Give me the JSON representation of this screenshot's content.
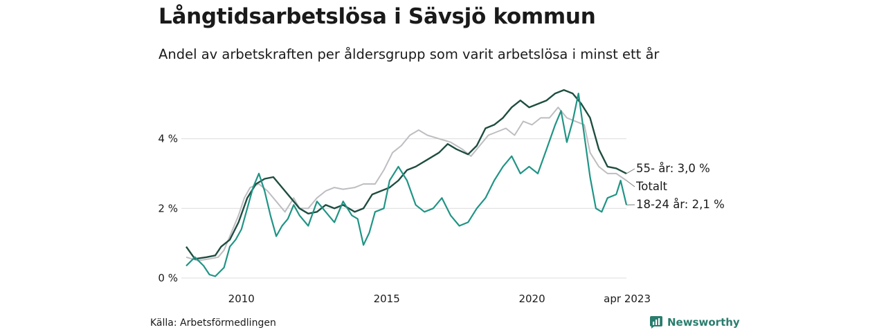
{
  "title": "Långtidsarbetslösa i Sävsjö kommun",
  "subtitle": "Andel av arbetskraften per åldersgrupp som varit arbetslösa i minst ett år",
  "source": "Källa: Arbetsförmedlingen",
  "brand": {
    "name": "Newsworthy",
    "icon": "newsworthy-logo-icon"
  },
  "colors": {
    "age55": "#1e4d40",
    "total": "#bdbdc2",
    "age1824": "#1f9485",
    "grid": "#dcdcdc"
  },
  "chart_data": {
    "type": "line",
    "title": "Långtidsarbetslösa i Sävsjö kommun",
    "ylim": [
      0,
      5.6
    ],
    "xlim": [
      2008.1,
      2023.25
    ],
    "yticks": [
      {
        "value": 0,
        "label": "0 %"
      },
      {
        "value": 2,
        "label": "2 %"
      },
      {
        "value": 4,
        "label": "4 %"
      }
    ],
    "xticks": [
      {
        "value": 2010,
        "label": "2010"
      },
      {
        "value": 2015,
        "label": "2015"
      },
      {
        "value": 2020,
        "label": "2020"
      },
      {
        "value": 2023.25,
        "label": "apr 2023"
      }
    ],
    "grid": true,
    "series": [
      {
        "key": "total",
        "name": "Totalt",
        "label": "Totalt",
        "points": [
          [
            2008.1,
            0.6
          ],
          [
            2008.5,
            0.5
          ],
          [
            2008.9,
            0.55
          ],
          [
            2009.2,
            0.6
          ],
          [
            2009.4,
            0.8
          ],
          [
            2009.6,
            1.2
          ],
          [
            2009.9,
            1.8
          ],
          [
            2010.1,
            2.3
          ],
          [
            2010.3,
            2.6
          ],
          [
            2010.6,
            2.7
          ],
          [
            2010.9,
            2.5
          ],
          [
            2011.2,
            2.2
          ],
          [
            2011.5,
            1.9
          ],
          [
            2011.8,
            2.3
          ],
          [
            2012.0,
            2.0
          ],
          [
            2012.3,
            2.0
          ],
          [
            2012.6,
            2.3
          ],
          [
            2012.9,
            2.5
          ],
          [
            2013.2,
            2.6
          ],
          [
            2013.5,
            2.55
          ],
          [
            2013.9,
            2.6
          ],
          [
            2014.2,
            2.7
          ],
          [
            2014.6,
            2.7
          ],
          [
            2014.9,
            3.1
          ],
          [
            2015.2,
            3.6
          ],
          [
            2015.5,
            3.8
          ],
          [
            2015.8,
            4.1
          ],
          [
            2016.1,
            4.25
          ],
          [
            2016.4,
            4.1
          ],
          [
            2016.8,
            4.0
          ],
          [
            2017.2,
            3.9
          ],
          [
            2017.6,
            3.7
          ],
          [
            2017.9,
            3.5
          ],
          [
            2018.2,
            3.8
          ],
          [
            2018.5,
            4.1
          ],
          [
            2018.8,
            4.2
          ],
          [
            2019.1,
            4.3
          ],
          [
            2019.4,
            4.1
          ],
          [
            2019.7,
            4.5
          ],
          [
            2020.0,
            4.4
          ],
          [
            2020.3,
            4.6
          ],
          [
            2020.6,
            4.6
          ],
          [
            2020.9,
            4.9
          ],
          [
            2021.2,
            4.6
          ],
          [
            2021.5,
            4.5
          ],
          [
            2021.8,
            4.4
          ],
          [
            2022.0,
            3.6
          ],
          [
            2022.3,
            3.2
          ],
          [
            2022.6,
            3.0
          ],
          [
            2022.9,
            3.0
          ],
          [
            2023.25,
            2.8
          ]
        ]
      },
      {
        "key": "age55",
        "name": "55- år",
        "label": "55- år: 3,0 %",
        "points": [
          [
            2008.1,
            0.9
          ],
          [
            2008.4,
            0.55
          ],
          [
            2008.8,
            0.6
          ],
          [
            2009.1,
            0.65
          ],
          [
            2009.3,
            0.9
          ],
          [
            2009.6,
            1.1
          ],
          [
            2009.9,
            1.6
          ],
          [
            2010.2,
            2.3
          ],
          [
            2010.5,
            2.7
          ],
          [
            2010.8,
            2.85
          ],
          [
            2011.1,
            2.9
          ],
          [
            2011.4,
            2.6
          ],
          [
            2011.7,
            2.3
          ],
          [
            2012.0,
            2.0
          ],
          [
            2012.3,
            1.85
          ],
          [
            2012.6,
            1.9
          ],
          [
            2012.9,
            2.1
          ],
          [
            2013.2,
            2.0
          ],
          [
            2013.5,
            2.1
          ],
          [
            2013.9,
            1.9
          ],
          [
            2014.2,
            2.0
          ],
          [
            2014.5,
            2.4
          ],
          [
            2014.8,
            2.5
          ],
          [
            2015.1,
            2.6
          ],
          [
            2015.4,
            2.8
          ],
          [
            2015.7,
            3.1
          ],
          [
            2016.0,
            3.2
          ],
          [
            2016.4,
            3.4
          ],
          [
            2016.8,
            3.6
          ],
          [
            2017.1,
            3.85
          ],
          [
            2017.4,
            3.7
          ],
          [
            2017.8,
            3.55
          ],
          [
            2018.1,
            3.8
          ],
          [
            2018.4,
            4.3
          ],
          [
            2018.7,
            4.4
          ],
          [
            2019.0,
            4.6
          ],
          [
            2019.3,
            4.9
          ],
          [
            2019.6,
            5.1
          ],
          [
            2019.9,
            4.9
          ],
          [
            2020.2,
            5.0
          ],
          [
            2020.5,
            5.1
          ],
          [
            2020.8,
            5.3
          ],
          [
            2021.1,
            5.4
          ],
          [
            2021.4,
            5.3
          ],
          [
            2021.7,
            5.0
          ],
          [
            2022.0,
            4.6
          ],
          [
            2022.3,
            3.7
          ],
          [
            2022.6,
            3.2
          ],
          [
            2022.9,
            3.15
          ],
          [
            2023.25,
            3.0
          ]
        ]
      },
      {
        "key": "age1824",
        "name": "18-24 år",
        "label": "18-24 år: 2,1 %",
        "points": [
          [
            2008.1,
            0.35
          ],
          [
            2008.4,
            0.6
          ],
          [
            2008.7,
            0.35
          ],
          [
            2008.9,
            0.1
          ],
          [
            2009.1,
            0.05
          ],
          [
            2009.4,
            0.3
          ],
          [
            2009.6,
            0.9
          ],
          [
            2009.8,
            1.1
          ],
          [
            2010.0,
            1.4
          ],
          [
            2010.2,
            2.0
          ],
          [
            2010.4,
            2.6
          ],
          [
            2010.6,
            3.0
          ],
          [
            2010.8,
            2.5
          ],
          [
            2011.0,
            1.8
          ],
          [
            2011.2,
            1.2
          ],
          [
            2011.4,
            1.5
          ],
          [
            2011.6,
            1.7
          ],
          [
            2011.8,
            2.1
          ],
          [
            2012.0,
            1.8
          ],
          [
            2012.3,
            1.5
          ],
          [
            2012.6,
            2.2
          ],
          [
            2012.9,
            1.9
          ],
          [
            2013.2,
            1.6
          ],
          [
            2013.5,
            2.2
          ],
          [
            2013.8,
            1.8
          ],
          [
            2014.0,
            1.7
          ],
          [
            2014.2,
            0.95
          ],
          [
            2014.4,
            1.3
          ],
          [
            2014.6,
            1.9
          ],
          [
            2014.9,
            2.0
          ],
          [
            2015.1,
            2.8
          ],
          [
            2015.4,
            3.2
          ],
          [
            2015.7,
            2.8
          ],
          [
            2016.0,
            2.1
          ],
          [
            2016.3,
            1.9
          ],
          [
            2016.6,
            2.0
          ],
          [
            2016.9,
            2.3
          ],
          [
            2017.2,
            1.8
          ],
          [
            2017.5,
            1.5
          ],
          [
            2017.8,
            1.6
          ],
          [
            2018.1,
            2.0
          ],
          [
            2018.4,
            2.3
          ],
          [
            2018.7,
            2.8
          ],
          [
            2019.0,
            3.2
          ],
          [
            2019.3,
            3.5
          ],
          [
            2019.6,
            3.0
          ],
          [
            2019.9,
            3.2
          ],
          [
            2020.2,
            3.0
          ],
          [
            2020.5,
            3.7
          ],
          [
            2020.8,
            4.4
          ],
          [
            2021.0,
            4.8
          ],
          [
            2021.2,
            3.9
          ],
          [
            2021.4,
            4.5
          ],
          [
            2021.6,
            5.3
          ],
          [
            2021.8,
            4.1
          ],
          [
            2022.0,
            2.9
          ],
          [
            2022.2,
            2.0
          ],
          [
            2022.4,
            1.9
          ],
          [
            2022.6,
            2.3
          ],
          [
            2022.9,
            2.4
          ],
          [
            2023.05,
            2.8
          ],
          [
            2023.25,
            2.1
          ]
        ]
      }
    ]
  }
}
